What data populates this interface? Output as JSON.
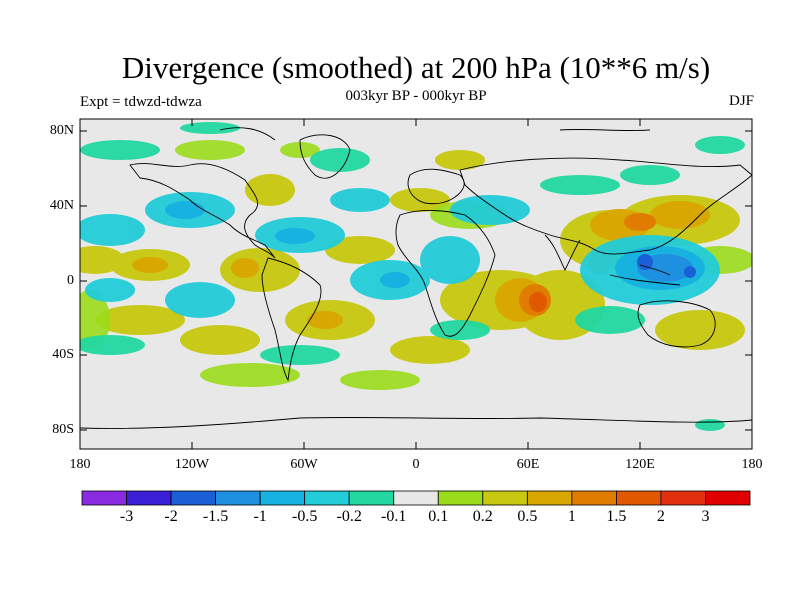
{
  "title": "Divergence (smoothed) at 200 hPa (10**6 m/s)",
  "subtitle": "003kyr BP - 000kyr BP",
  "experiment": "Expt = tdwzd-tdwza",
  "season": "DJF",
  "lat_labels": [
    "80N",
    "40N",
    "0",
    "40S",
    "80S"
  ],
  "lon_labels": [
    "180",
    "120W",
    "60W",
    "0",
    "60E",
    "120E",
    "180"
  ],
  "colorbar": {
    "labels": [
      "-3",
      "-2",
      "-1.5",
      "-1",
      "-0.5",
      "-0.2",
      "-0.1",
      "0.1",
      "0.2",
      "0.5",
      "1",
      "1.5",
      "2",
      "3"
    ],
    "colors": [
      "#8a2be2",
      "#3a1fd6",
      "#1b5fd6",
      "#1f8fe0",
      "#18b2e0",
      "#22ccd8",
      "#22d8a0",
      "#e8e8e8",
      "#9adb1c",
      "#c8c810",
      "#d8a800",
      "#e07c00",
      "#e05800",
      "#e03010",
      "#e00000"
    ]
  }
}
